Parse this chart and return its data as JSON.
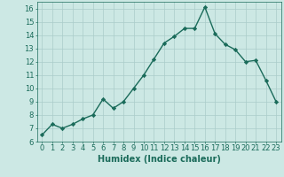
{
  "x": [
    0,
    1,
    2,
    3,
    4,
    5,
    6,
    7,
    8,
    9,
    10,
    11,
    12,
    13,
    14,
    15,
    16,
    17,
    18,
    19,
    20,
    21,
    22,
    23
  ],
  "y": [
    6.5,
    7.3,
    7.0,
    7.3,
    7.7,
    8.0,
    9.2,
    8.5,
    9.0,
    10.0,
    11.0,
    12.2,
    13.4,
    13.9,
    14.5,
    14.5,
    16.1,
    14.1,
    13.3,
    12.9,
    12.0,
    12.1,
    10.6,
    9.0
  ],
  "line_color": "#1a6b5a",
  "marker": "D",
  "marker_size": 2.2,
  "bg_color": "#cce8e4",
  "grid_color": "#aaccca",
  "xlabel": "Humidex (Indice chaleur)",
  "xlim": [
    -0.5,
    23.5
  ],
  "ylim": [
    6,
    16.5
  ],
  "yticks": [
    6,
    7,
    8,
    9,
    10,
    11,
    12,
    13,
    14,
    15,
    16
  ],
  "xticks": [
    0,
    1,
    2,
    3,
    4,
    5,
    6,
    7,
    8,
    9,
    10,
    11,
    12,
    13,
    14,
    15,
    16,
    17,
    18,
    19,
    20,
    21,
    22,
    23
  ],
  "xlabel_fontsize": 7,
  "tick_fontsize": 6,
  "line_width": 1.0
}
